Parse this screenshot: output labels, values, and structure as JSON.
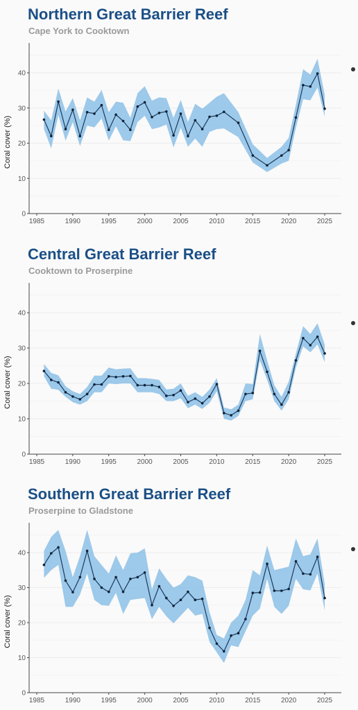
{
  "chart_data": [
    {
      "type": "line",
      "title": "Northern Great Barrier Reef",
      "subtitle": "Cape York to Cooktown",
      "ylabel": "Coral cover (%)",
      "xlabel": "",
      "ylim": [
        0,
        40
      ],
      "xlim": [
        1985,
        2025
      ],
      "x_ticks": [
        1985,
        1990,
        1995,
        2000,
        2005,
        2010,
        2015,
        2020,
        2025
      ],
      "y_ticks": [
        0,
        10,
        20,
        30,
        40
      ],
      "grid": true,
      "series": [
        {
          "x": [
            1986,
            1987,
            1988,
            1989,
            1990,
            1991,
            1992,
            1993,
            1994,
            1995,
            1996,
            1997,
            1998,
            1999,
            2000,
            2001,
            2002,
            2003,
            2004,
            2005,
            2006,
            2007,
            2008,
            2009,
            2010,
            2011,
            2013,
            2015,
            2017,
            2019,
            2020,
            2021,
            2022,
            2023,
            2024,
            2025
          ],
          "y": [
            26.7,
            22,
            31.8,
            24,
            29.5,
            22,
            28.8,
            28.4,
            30.8,
            23.8,
            28.1,
            26.3,
            23.8,
            30.4,
            31.6,
            27.4,
            28.6,
            29,
            22.2,
            28.4,
            22,
            26.5,
            24,
            27.5,
            27.8,
            28.9,
            25.8,
            16.5,
            13.7,
            16.5,
            18,
            27.3,
            36.5,
            36.1,
            39.8,
            29.8
          ],
          "lower": [
            24,
            18.5,
            28,
            20.7,
            26,
            19.2,
            25,
            24.5,
            27,
            20.7,
            24.8,
            20.8,
            20.6,
            26,
            27.8,
            24,
            24.5,
            25.3,
            18.8,
            24.4,
            19,
            21.3,
            19,
            23.2,
            24,
            24.2,
            21.7,
            14.5,
            11.8,
            14.2,
            15,
            24.4,
            32.5,
            32.2,
            35.8,
            27.5
          ],
          "upper": [
            29.2,
            26.5,
            35.5,
            29,
            32.8,
            26.5,
            33,
            31.8,
            35.1,
            28.8,
            31.8,
            31.5,
            27.2,
            34.2,
            36.2,
            32.1,
            33,
            32.8,
            27.2,
            32.3,
            26,
            31.2,
            29.8,
            31.5,
            33.2,
            34.2,
            28.8,
            19.7,
            15.8,
            19,
            21.5,
            31,
            41,
            39.5,
            44,
            33.8
          ]
        }
      ]
    },
    {
      "type": "line",
      "title": "Central Great Barrier Reef",
      "subtitle": "Cooktown to Proserpine",
      "ylabel": "Coral cover (%)",
      "xlabel": "",
      "ylim": [
        0,
        40
      ],
      "xlim": [
        1985,
        2025
      ],
      "x_ticks": [
        1985,
        1990,
        1995,
        2000,
        2005,
        2010,
        2015,
        2020,
        2025
      ],
      "y_ticks": [
        0,
        10,
        20,
        30,
        40
      ],
      "grid": true,
      "series": [
        {
          "x": [
            1986,
            1987,
            1988,
            1989,
            1990,
            1991,
            1992,
            1993,
            1994,
            1995,
            1996,
            1997,
            1998,
            1999,
            2000,
            2001,
            2002,
            2003,
            2004,
            2005,
            2006,
            2007,
            2008,
            2009,
            2010,
            2011,
            2012,
            2013,
            2014,
            2015,
            2016,
            2017,
            2018,
            2019,
            2020,
            2021,
            2022,
            2023,
            2024,
            2025
          ],
          "y": [
            23.5,
            21,
            20.3,
            17.5,
            16.3,
            15.5,
            17,
            19.7,
            19.7,
            22,
            21.8,
            22,
            22.1,
            19.5,
            19.5,
            19.5,
            19,
            16.5,
            16.7,
            18,
            14.7,
            15.7,
            14.4,
            16.3,
            19.8,
            11.6,
            11,
            12.3,
            17,
            17.3,
            29.2,
            23.3,
            17,
            14,
            17.5,
            26.5,
            32.8,
            30.8,
            33.2,
            28.5
          ],
          "lower": [
            22,
            18.5,
            18.2,
            16.2,
            14.7,
            14,
            15,
            17.5,
            17.5,
            20,
            19.8,
            20,
            20,
            17.5,
            17.5,
            17.5,
            17,
            15,
            15,
            15.8,
            13,
            14,
            12.8,
            14.5,
            17.8,
            10,
            9.5,
            10.8,
            15,
            15.5,
            26.5,
            21,
            15,
            12.3,
            15.5,
            24.5,
            30.5,
            28.8,
            31,
            26
          ],
          "upper": [
            25.5,
            23,
            22.3,
            19.2,
            17.8,
            17,
            19,
            22.2,
            22.2,
            24.5,
            24,
            24.2,
            24.3,
            21.5,
            21.5,
            21.3,
            21,
            18.3,
            18.5,
            20,
            16.5,
            17.5,
            16.2,
            18.3,
            21.5,
            13.2,
            12.7,
            14,
            20,
            19.8,
            34,
            26.5,
            19.5,
            16.2,
            20.5,
            28.5,
            36.2,
            34,
            37,
            31
          ]
        }
      ]
    },
    {
      "type": "line",
      "title": "Southern Great Barrier Reef",
      "subtitle": "Proserpine to Gladstone",
      "ylabel": "Coral cover (%)",
      "xlabel": "",
      "ylim": [
        0,
        40
      ],
      "xlim": [
        1985,
        2025
      ],
      "x_ticks": [
        1985,
        1990,
        1995,
        2000,
        2005,
        2010,
        2015,
        2020,
        2025
      ],
      "y_ticks": [
        0,
        10,
        20,
        30,
        40
      ],
      "grid": true,
      "series": [
        {
          "x": [
            1986,
            1987,
            1988,
            1989,
            1990,
            1991,
            1992,
            1993,
            1994,
            1995,
            1996,
            1997,
            1998,
            1999,
            2000,
            2001,
            2002,
            2003,
            2004,
            2005,
            2006,
            2007,
            2008,
            2009,
            2010,
            2011,
            2012,
            2013,
            2014,
            2015,
            2016,
            2017,
            2018,
            2019,
            2020,
            2021,
            2022,
            2023,
            2024,
            2025
          ],
          "y": [
            36.5,
            39.8,
            41.5,
            32,
            28.7,
            33,
            40.5,
            32.5,
            30,
            28.8,
            33,
            28.8,
            32.5,
            33,
            34.3,
            25,
            30.4,
            27,
            24.8,
            26.5,
            28.8,
            26.5,
            26.8,
            18.5,
            14,
            11.8,
            16.3,
            17,
            21,
            28.5,
            28.6,
            36.8,
            29.1,
            29.1,
            29.6,
            37.5,
            34,
            33.8,
            38.8,
            27
          ],
          "lower": [
            32.8,
            35,
            36.5,
            24.5,
            24.5,
            28,
            34,
            26.5,
            25,
            24.8,
            28.5,
            22.5,
            26.5,
            26.8,
            27,
            21,
            24.5,
            21.8,
            19.8,
            22,
            24.2,
            22,
            22.5,
            14.5,
            11.5,
            8.5,
            13.5,
            13,
            17.5,
            22,
            24,
            32.5,
            24.5,
            22.5,
            24.8,
            32.5,
            29.5,
            29.2,
            34,
            23.5
          ],
          "upper": [
            40.5,
            44.5,
            46.5,
            40.5,
            33,
            39,
            46.5,
            39,
            36.5,
            34,
            39.2,
            35,
            39.8,
            40,
            41.2,
            29.5,
            35.5,
            32.5,
            30,
            31,
            33.5,
            33,
            32,
            23,
            16.5,
            15.5,
            20,
            22,
            26.5,
            35,
            33.5,
            42,
            35,
            35.5,
            36,
            44,
            39,
            39.5,
            44,
            31
          ]
        }
      ]
    }
  ]
}
